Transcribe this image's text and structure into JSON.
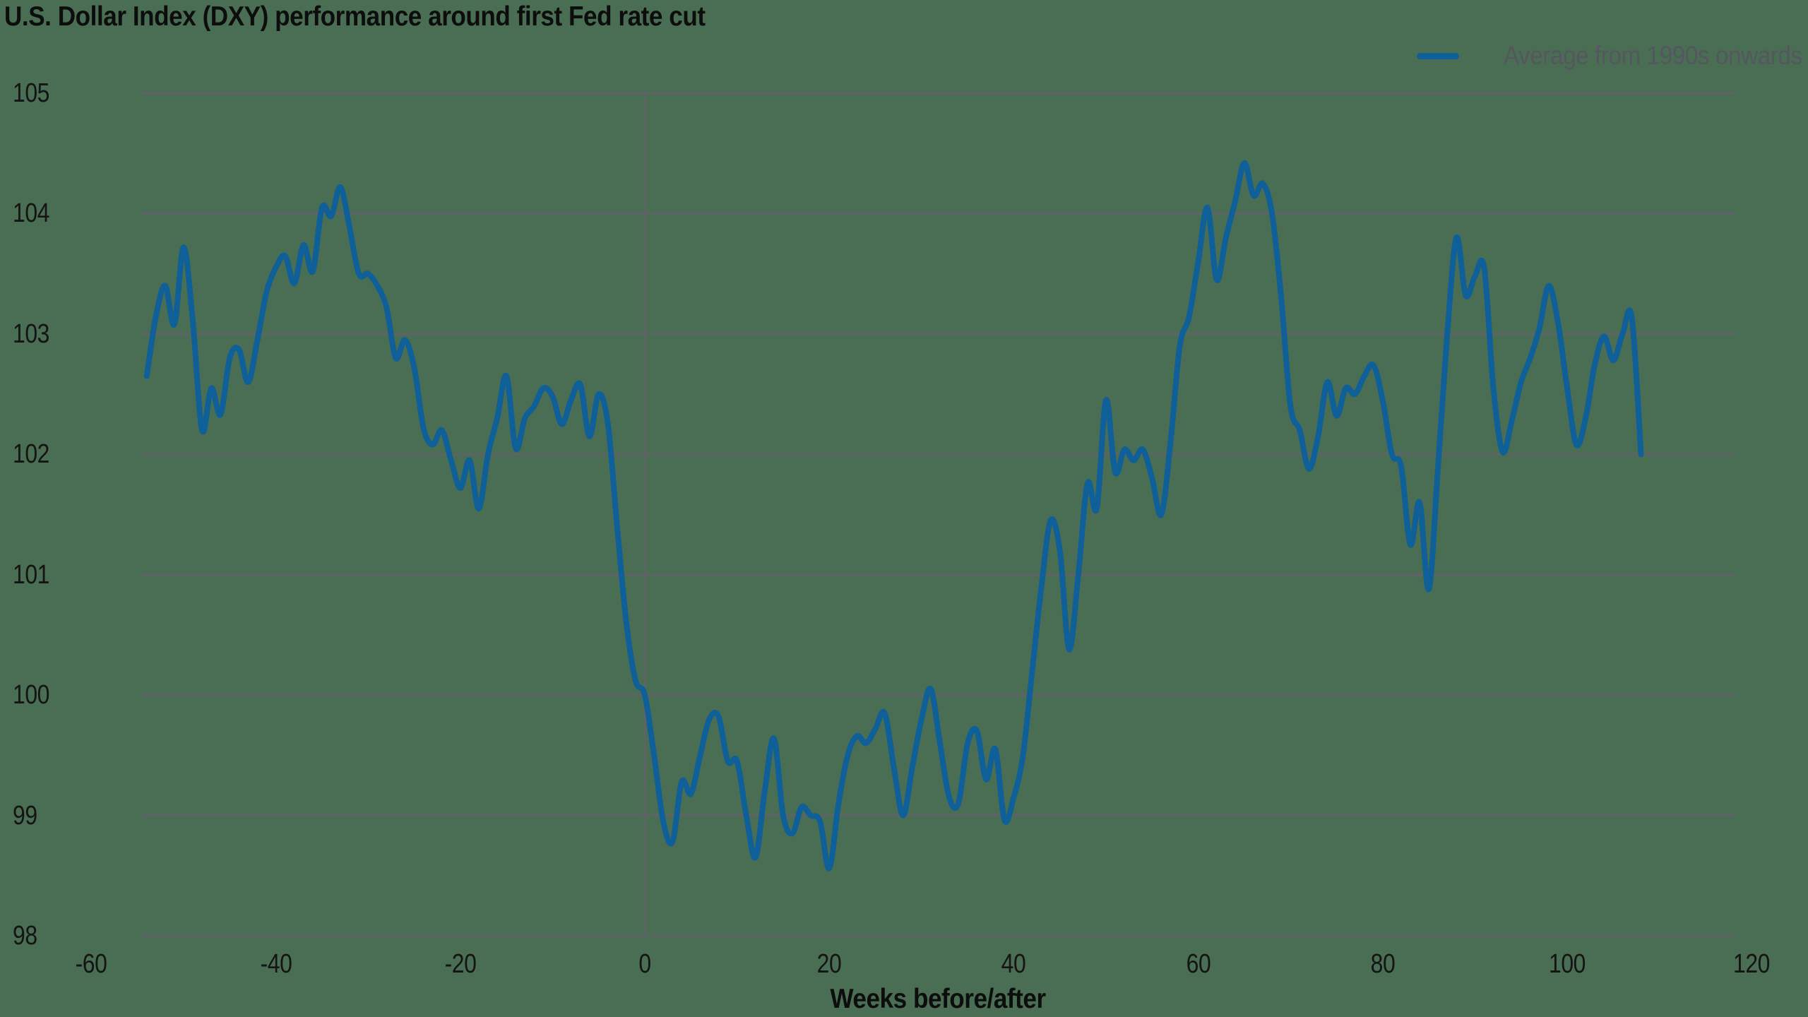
{
  "header": {
    "title": "U.S. Dollar Index (DXY) performance around first Fed rate cut"
  },
  "legend": {
    "label": "Average from 1990s onwards",
    "position": "top-right"
  },
  "colors": {
    "background": "#4a6e53",
    "line": "#0f5f98",
    "gridline": "#606268",
    "zero_line": "#606268",
    "title_text": "#0d0d0d",
    "tick_text": "#141414",
    "legend_text": "#54575f"
  },
  "chart_data": {
    "type": "line",
    "title": "U.S. Dollar Index (DXY) performance around first Fed rate cut",
    "xlabel": "Weeks before/after",
    "ylabel": "",
    "xlim": [
      -60,
      120
    ],
    "ylim": [
      98,
      105
    ],
    "x_ticks": [
      -60,
      -40,
      -20,
      0,
      20,
      40,
      60,
      80,
      100,
      120
    ],
    "y_ticks": [
      98,
      99,
      100,
      101,
      102,
      103,
      104,
      105
    ],
    "grid": "horizontal gridlines at each y tick, vertical reference line at week 0",
    "legend_position": "top-right",
    "series": [
      {
        "name": "Average from 1990s onwards",
        "x": [
          -54,
          -53,
          -52,
          -51,
          -50,
          -49,
          -48,
          -47,
          -46,
          -45,
          -44,
          -43,
          -42,
          -41,
          -40,
          -39,
          -38,
          -37,
          -36,
          -35,
          -34,
          -33,
          -32,
          -31,
          -30,
          -29,
          -28,
          -27,
          -26,
          -25,
          -24,
          -23,
          -22,
          -21,
          -20,
          -19,
          -18,
          -17,
          -16,
          -15,
          -14,
          -13,
          -12,
          -11,
          -10,
          -9,
          -8,
          -7,
          -6,
          -5,
          -4,
          -3,
          -2,
          -1,
          0,
          1,
          2,
          3,
          4,
          5,
          6,
          7,
          8,
          9,
          10,
          11,
          12,
          13,
          14,
          15,
          16,
          17,
          18,
          19,
          20,
          21,
          22,
          23,
          24,
          25,
          26,
          27,
          28,
          29,
          30,
          31,
          32,
          33,
          34,
          35,
          36,
          37,
          38,
          39,
          40,
          41,
          42,
          43,
          44,
          45,
          46,
          47,
          48,
          49,
          50,
          51,
          52,
          53,
          54,
          55,
          56,
          57,
          58,
          59,
          60,
          61,
          62,
          63,
          64,
          65,
          66,
          67,
          68,
          69,
          70,
          71,
          72,
          73,
          74,
          75,
          76,
          77,
          78,
          79,
          80,
          81,
          82,
          83,
          84,
          85,
          86,
          87,
          88,
          89,
          90,
          91,
          92,
          93,
          94,
          95,
          96,
          97,
          98,
          99,
          100,
          101,
          102,
          103,
          104,
          105,
          106,
          107,
          108
        ],
        "y": [
          102.65,
          103.15,
          103.4,
          103.08,
          103.72,
          103.1,
          102.2,
          102.55,
          102.33,
          102.8,
          102.87,
          102.6,
          102.95,
          103.35,
          103.55,
          103.65,
          103.42,
          103.74,
          103.52,
          104.05,
          103.98,
          104.22,
          103.88,
          103.5,
          103.5,
          103.4,
          103.22,
          102.8,
          102.95,
          102.72,
          102.22,
          102.08,
          102.2,
          101.95,
          101.72,
          101.95,
          101.55,
          102.0,
          102.3,
          102.65,
          102.05,
          102.3,
          102.4,
          102.55,
          102.48,
          102.25,
          102.45,
          102.58,
          102.15,
          102.5,
          102.25,
          101.4,
          100.6,
          100.12,
          100.0,
          99.5,
          98.95,
          98.78,
          99.28,
          99.18,
          99.5,
          99.8,
          99.82,
          99.45,
          99.45,
          99.0,
          98.65,
          99.2,
          99.64,
          99.0,
          98.85,
          99.07,
          99.0,
          98.95,
          98.56,
          99.1,
          99.5,
          99.66,
          99.6,
          99.72,
          99.85,
          99.4,
          99.0,
          99.4,
          99.8,
          100.05,
          99.6,
          99.15,
          99.1,
          99.6,
          99.7,
          99.3,
          99.55,
          98.96,
          99.15,
          99.5,
          100.2,
          100.9,
          101.45,
          101.2,
          100.38,
          101.0,
          101.76,
          101.55,
          102.45,
          101.85,
          102.04,
          101.95,
          102.04,
          101.8,
          101.5,
          102.1,
          102.9,
          103.14,
          103.6,
          104.05,
          103.45,
          103.8,
          104.1,
          104.42,
          104.15,
          104.25,
          104.0,
          103.3,
          102.4,
          102.2,
          101.88,
          102.15,
          102.6,
          102.32,
          102.55,
          102.5,
          102.65,
          102.74,
          102.45,
          102.0,
          101.9,
          101.25,
          101.6,
          100.88,
          101.9,
          103.0,
          103.8,
          103.32,
          103.48,
          103.55,
          102.55,
          102.02,
          102.28,
          102.6,
          102.8,
          103.05,
          103.4,
          103.1,
          102.55,
          102.08,
          102.3,
          102.75,
          102.98,
          102.78,
          103.0,
          103.14,
          102.0
        ]
      }
    ]
  }
}
